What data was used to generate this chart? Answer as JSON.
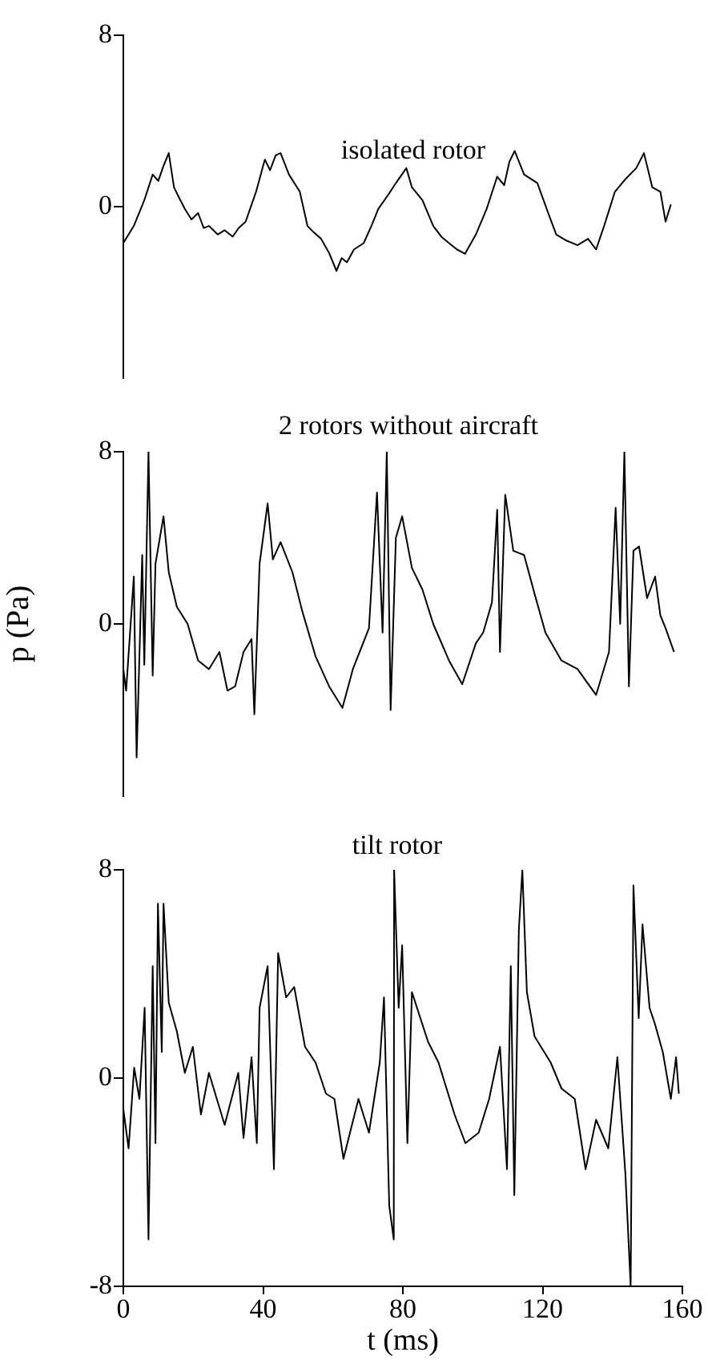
{
  "chart_data": [
    {
      "type": "line",
      "title": "isolated rotor",
      "color": "#000000",
      "xlim": [
        0,
        160
      ],
      "ylim": [
        -8,
        8
      ],
      "yticks": [
        8,
        0
      ],
      "tick_labels": "y",
      "grid": false,
      "x": [
        0,
        3,
        6,
        8.4,
        10,
        11.5,
        13,
        14.5,
        16,
        17.6,
        19.5,
        21.4,
        23,
        24.5,
        27,
        29,
        31.3,
        33,
        35,
        38,
        40.5,
        42,
        43.6,
        45,
        47.4,
        50.5,
        52.7,
        54.5,
        56.6,
        59,
        61,
        62.5,
        64,
        66,
        68.8,
        71,
        73,
        76,
        78,
        81,
        82.6,
        85.6,
        88.7,
        91,
        93.2,
        95.5,
        97.8,
        100.9,
        104,
        107,
        109,
        110.5,
        112,
        114.7,
        118.5,
        121.6,
        123.9,
        127,
        130,
        133,
        135.3,
        137.6,
        140.7,
        143.8,
        146.8,
        149,
        151.4,
        153.7,
        155.2,
        156.7
      ],
      "values": [
        -1.7,
        -0.9,
        0.3,
        1.5,
        1.2,
        1.9,
        2.5,
        0.9,
        0.4,
        -0.1,
        -0.6,
        -0.3,
        -1.0,
        -0.9,
        -1.3,
        -1.1,
        -1.4,
        -1.0,
        -0.7,
        0.7,
        2.2,
        1.7,
        2.4,
        2.5,
        1.5,
        0.7,
        -0.9,
        -1.2,
        -1.5,
        -2.2,
        -3.0,
        -2.4,
        -2.6,
        -2.0,
        -1.7,
        -0.9,
        -0.1,
        0.6,
        1.1,
        1.8,
        0.9,
        0.3,
        -0.9,
        -1.4,
        -1.7,
        -2.0,
        -2.2,
        -1.3,
        -0.1,
        1.4,
        1.0,
        2.1,
        2.6,
        1.5,
        1.1,
        -0.3,
        -1.3,
        -1.6,
        -1.8,
        -1.5,
        -2.0,
        -0.9,
        0.7,
        1.3,
        1.8,
        2.5,
        0.9,
        0.7,
        -0.7,
        0.1
      ]
    },
    {
      "type": "line",
      "title": "2 rotors without aircraft",
      "ylabel": "p (Pa)",
      "color": "#000000",
      "xlim": [
        0,
        160
      ],
      "ylim": [
        -8,
        8
      ],
      "yticks": [
        8,
        0
      ],
      "tick_labels": "y",
      "grid": false,
      "x": [
        0,
        0.8,
        3,
        3.8,
        5.4,
        6,
        7.2,
        8.4,
        9.2,
        11.5,
        13,
        15.3,
        18.4,
        21.4,
        24.5,
        27.5,
        29.8,
        32,
        34.4,
        36.7,
        37.5,
        39,
        41.3,
        42.8,
        45,
        48.4,
        51.2,
        55,
        58.9,
        62.7,
        65.7,
        70.3,
        72.6,
        74.2,
        75.4,
        76.5,
        78,
        79.8,
        82.6,
        85.6,
        88.7,
        93.2,
        97,
        100.9,
        103,
        105.5,
        107,
        107.8,
        109.3,
        111.6,
        114.7,
        117.7,
        120.8,
        125.4,
        130,
        135.3,
        139,
        140.9,
        142.2,
        143.4,
        144.7,
        146,
        147.6,
        149.9,
        152.2,
        153.7,
        155.2,
        157.6
      ],
      "values": [
        -2.1,
        -3.1,
        2.2,
        -6.2,
        3.2,
        -1.9,
        8.0,
        -2.4,
        2.8,
        5.0,
        2.4,
        0.8,
        0.0,
        -1.7,
        -2.1,
        -1.3,
        -3.1,
        -2.9,
        -1.3,
        -0.7,
        -4.2,
        2.8,
        5.6,
        3.0,
        3.8,
        2.4,
        0.6,
        -1.5,
        -2.9,
        -3.9,
        -2.1,
        -0.2,
        6.1,
        -0.4,
        8.0,
        -4.0,
        4.0,
        5.0,
        2.6,
        1.6,
        0.0,
        -1.7,
        -2.8,
        -0.9,
        -0.4,
        1.0,
        5.3,
        -1.3,
        6.0,
        3.4,
        3.2,
        1.4,
        -0.4,
        -1.7,
        -2.1,
        -3.3,
        -1.3,
        5.4,
        0.0,
        8.0,
        -2.9,
        3.4,
        3.6,
        1.2,
        2.2,
        0.4,
        -0.2,
        -1.3
      ]
    },
    {
      "type": "line",
      "title": "tilt rotor",
      "xlabel": "t (ms)",
      "color": "#000000",
      "xlim": [
        0,
        160
      ],
      "xticks": [
        0,
        40,
        80,
        120,
        160
      ],
      "ylim": [
        -8,
        8
      ],
      "yticks": [
        8,
        0,
        -8
      ],
      "grid": false,
      "x": [
        0,
        1.5,
        3.1,
        4.6,
        6.1,
        7.2,
        8.4,
        9.2,
        9.9,
        11,
        11.5,
        13,
        15.3,
        17.6,
        19.9,
        22.2,
        24.5,
        29,
        32.9,
        34.4,
        36.7,
        38.2,
        39,
        41.3,
        43.1,
        44.3,
        46.6,
        48.9,
        52,
        55,
        58,
        60.4,
        63,
        67.3,
        70.3,
        73.4,
        74.6,
        76.1,
        77.4,
        77.5,
        78.8,
        79.8,
        81.3,
        82.6,
        87.2,
        90.2,
        94.8,
        97.9,
        101.7,
        104.7,
        107.8,
        109.8,
        110.9,
        111.9,
        113.2,
        114.2,
        115.5,
        117.7,
        122.3,
        125.4,
        129.2,
        132.3,
        135.3,
        138.8,
        141.4,
        143.7,
        145.2,
        146,
        147.5,
        148.6,
        150.6,
        152.1,
        154.4,
        156.7,
        158.2,
        159
      ],
      "values": [
        -1.2,
        -2.7,
        0.4,
        -0.8,
        2.7,
        -6.2,
        4.3,
        -2.5,
        6.7,
        1.0,
        6.7,
        2.9,
        1.8,
        0.2,
        1.2,
        -1.4,
        0.2,
        -1.8,
        0.2,
        -2.3,
        0.8,
        -2.5,
        2.7,
        4.3,
        -3.5,
        4.8,
        3.1,
        3.5,
        1.2,
        0.6,
        -0.6,
        -0.8,
        -3.1,
        -0.8,
        -2.1,
        0.6,
        3.1,
        -4.9,
        -6.2,
        8.0,
        2.7,
        5.1,
        -2.5,
        3.3,
        1.4,
        0.6,
        -1.4,
        -2.5,
        -2.1,
        -0.8,
        1.2,
        -3.5,
        4.3,
        -4.5,
        5.7,
        8.0,
        3.3,
        1.6,
        0.6,
        -0.4,
        -0.8,
        -3.5,
        -1.6,
        -2.7,
        0.8,
        -3.7,
        -8.0,
        7.4,
        2.3,
        5.9,
        2.7,
        2.1,
        1.0,
        -0.8,
        0.8,
        -0.6
      ]
    }
  ]
}
